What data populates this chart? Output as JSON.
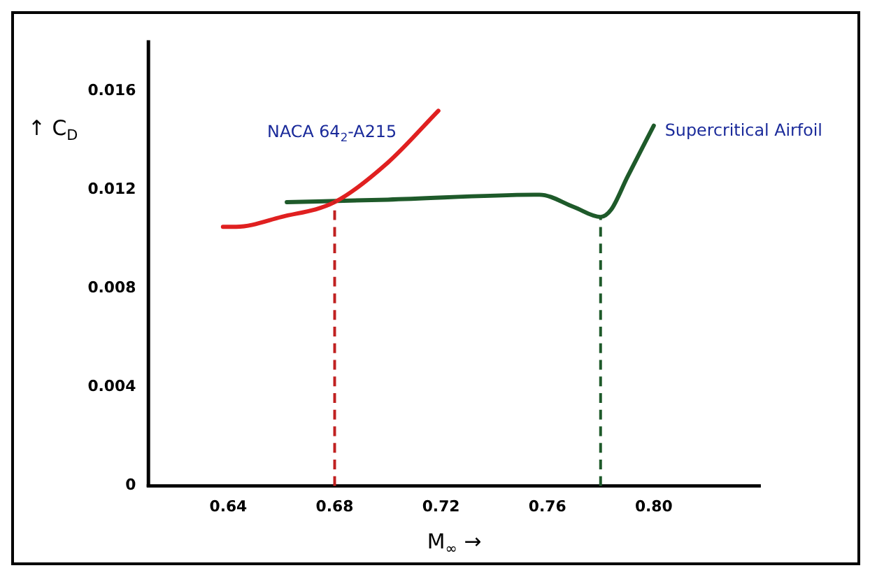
{
  "chart_data": {
    "type": "line",
    "xlabel": "M$_{∞}$ →",
    "ylabel": "↑ C$_{D}$",
    "xlim": [
      0.61,
      0.84
    ],
    "xticks": [
      0.64,
      0.68,
      0.72,
      0.76,
      {
        "value": 0.8,
        "label": "0.80"
      }
    ],
    "ylim": [
      0,
      0.018
    ],
    "yticks": [
      0,
      0.004,
      0.008,
      0.012,
      0.016
    ],
    "grid": false,
    "legend": false,
    "marker": "none",
    "line_style": "solid",
    "series": [
      {
        "name": "NACA 64$_{2}$-A215",
        "color": "#e02020",
        "x": [
          0.638,
          0.643,
          0.66,
          0.68,
          0.7,
          0.719
        ],
        "values": [
          0.0105,
          0.0105,
          0.0109,
          0.0115,
          0.0131,
          0.0152
        ]
      },
      {
        "name": "Supercritical Airfoil",
        "color": "#1e5a2a",
        "x": [
          0.662,
          0.7,
          0.757,
          0.77,
          0.78,
          0.784,
          0.79,
          0.8
        ],
        "values": [
          0.0115,
          0.0116,
          0.0118,
          0.0113,
          0.0109,
          0.0112,
          0.0125,
          0.0146
        ]
      }
    ],
    "ref_lines": [
      {
        "axis": "x",
        "value": 0.68,
        "color": "#c02020",
        "line_style": "dashed"
      },
      {
        "axis": "x",
        "value": 0.78,
        "color": "#1e5a2a",
        "line_style": "dashed"
      }
    ]
  }
}
